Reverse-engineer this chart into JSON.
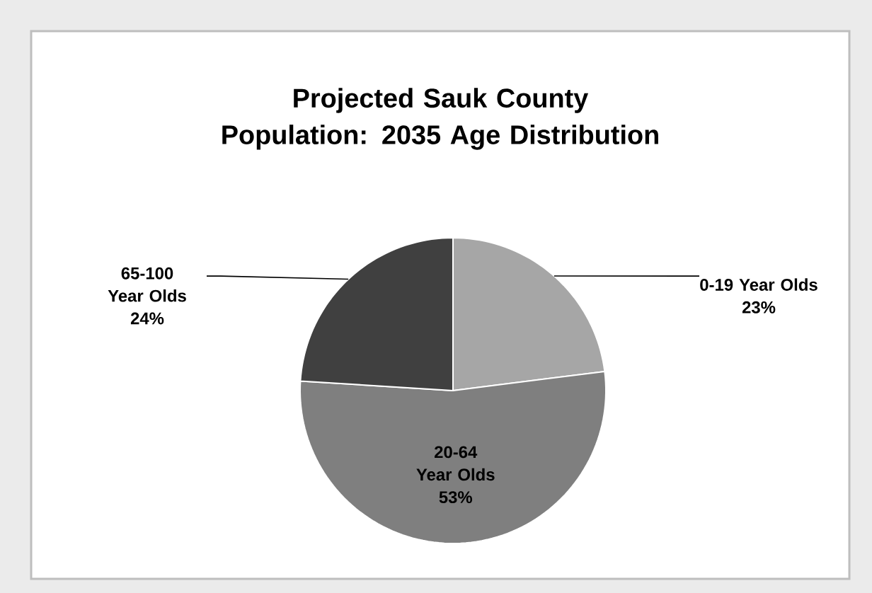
{
  "chart_data": {
    "type": "pie",
    "title": "Projected Sauk County Population: 2035 Age Distribution",
    "categories": [
      "0-19 Year Olds",
      "20-64 Year Olds",
      "65-100 Year Olds"
    ],
    "values": [
      23,
      53,
      24
    ],
    "value_labels": [
      "23%",
      "53%",
      "24%"
    ],
    "colors": [
      "#a6a6a6",
      "#7f7f7f",
      "#404040"
    ]
  }
}
